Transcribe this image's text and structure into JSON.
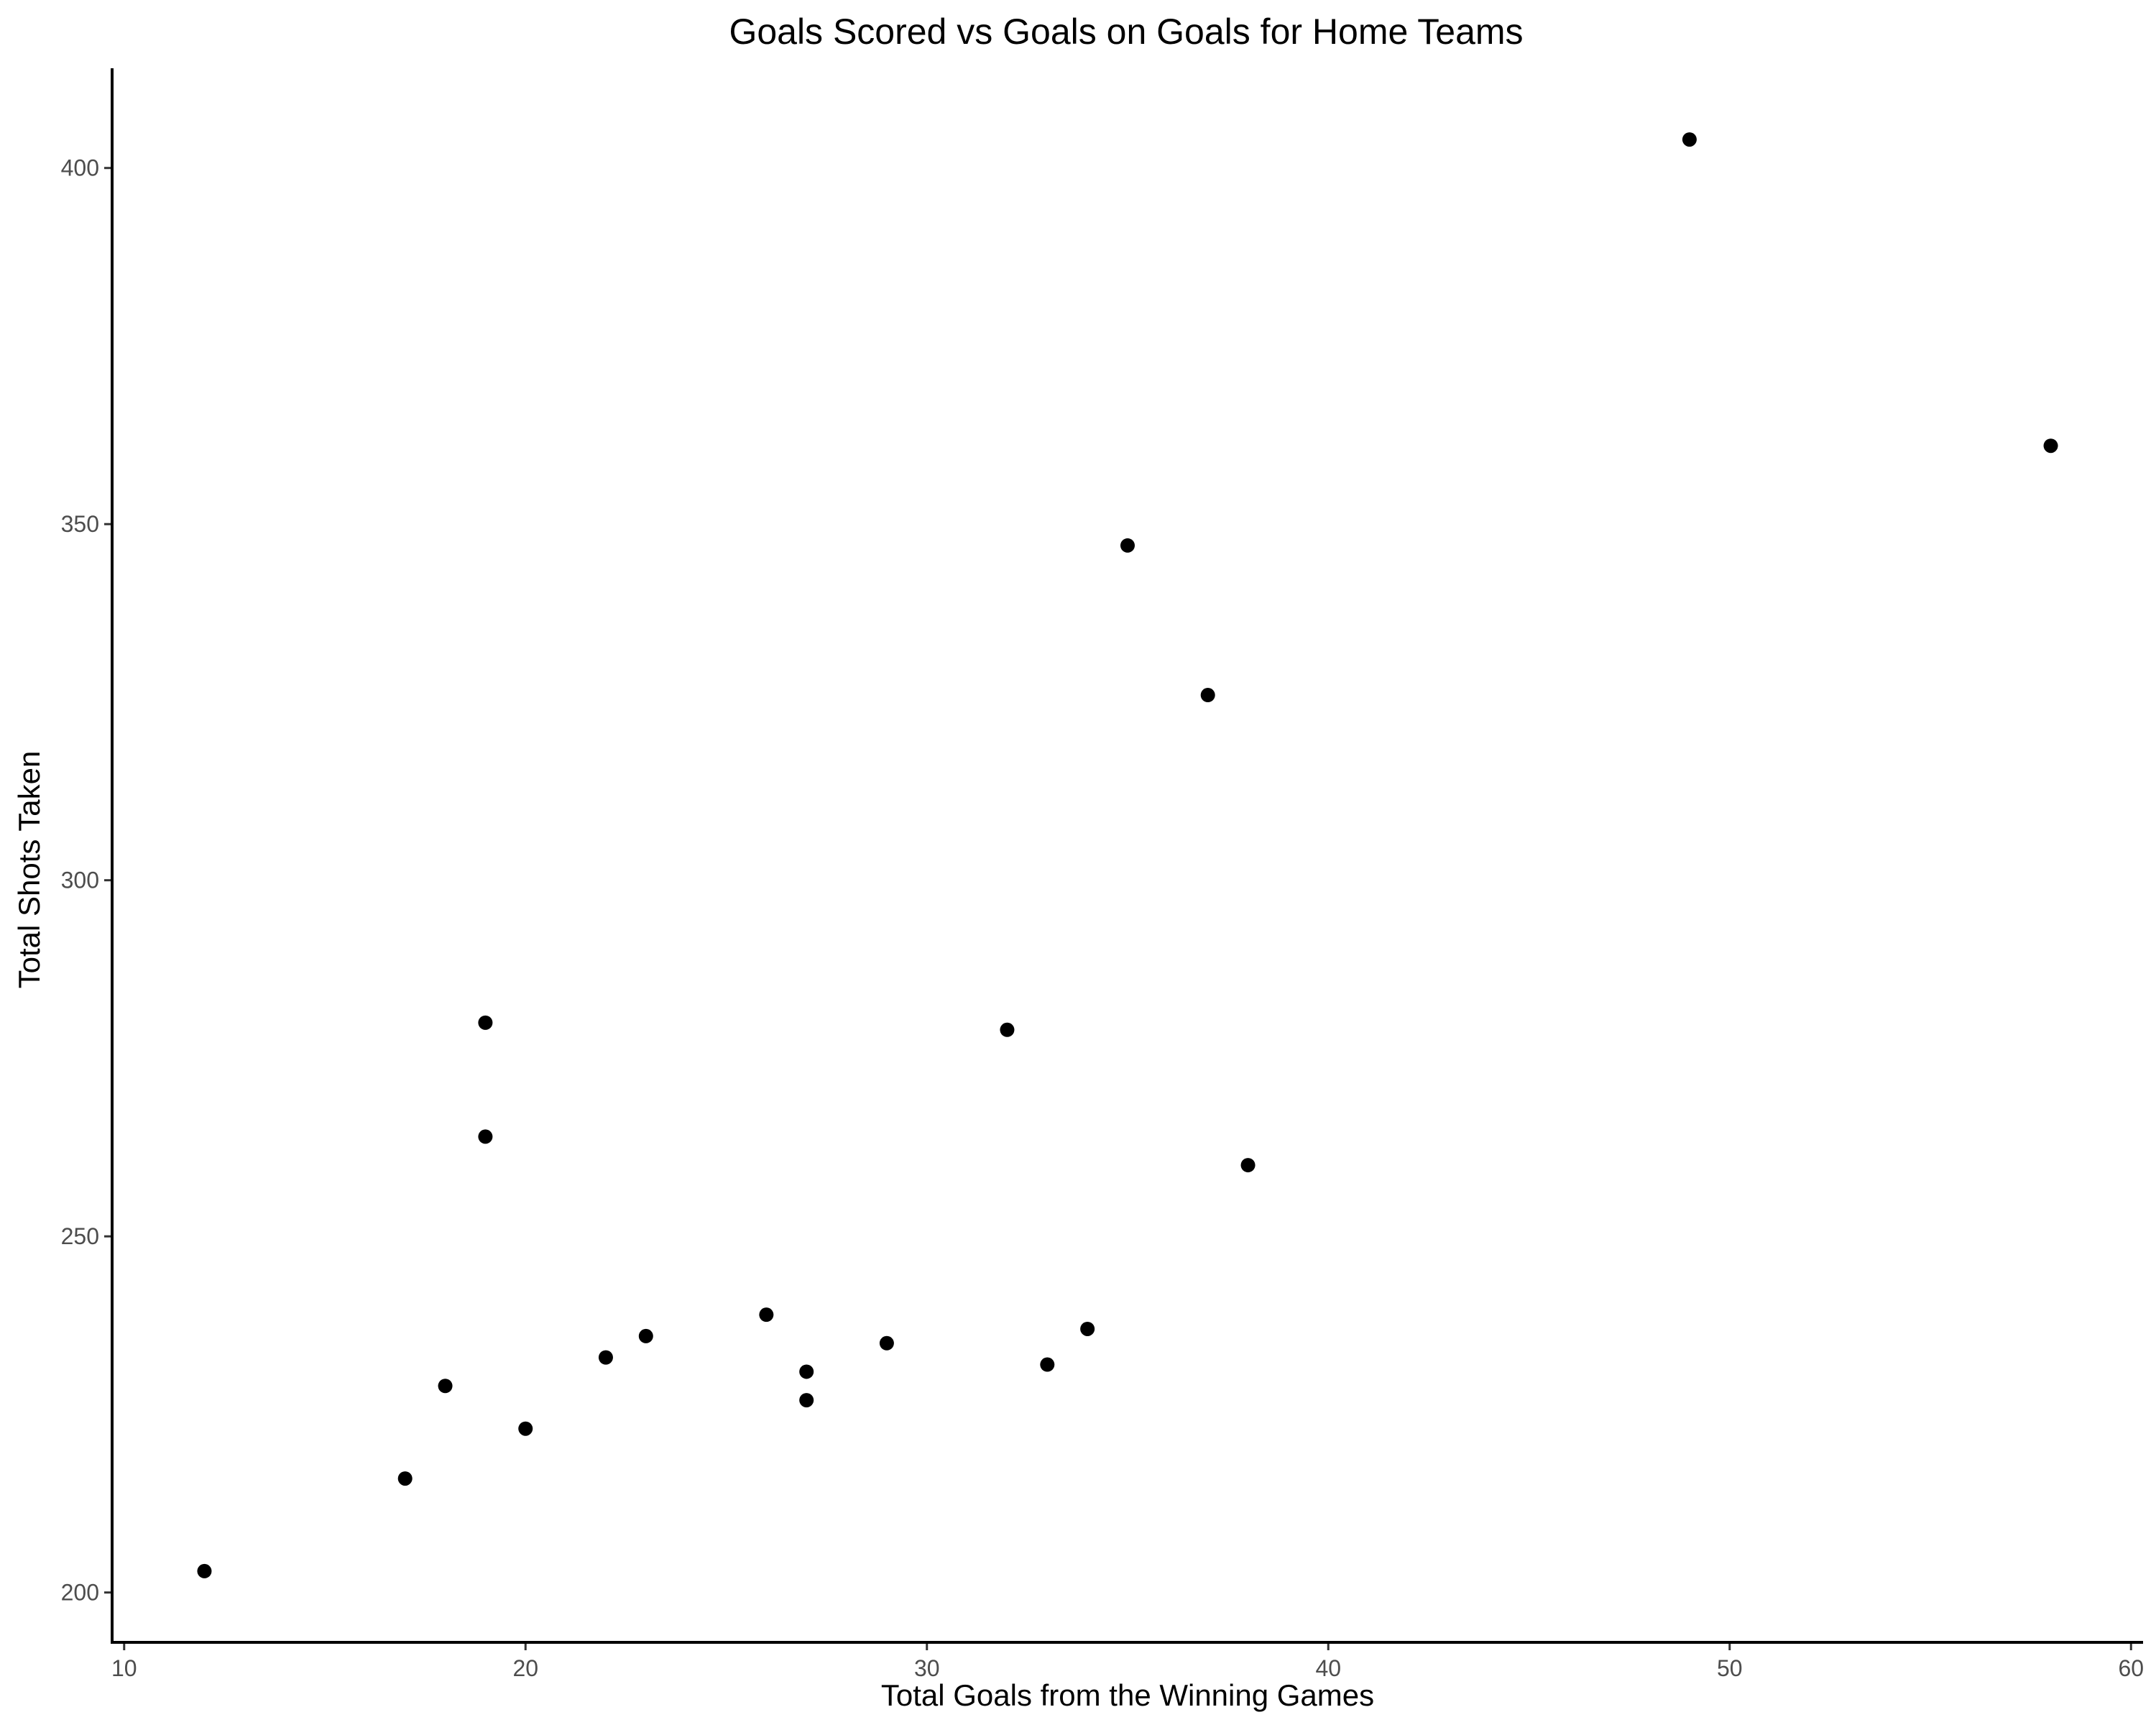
{
  "chart_data": {
    "type": "scatter",
    "title": "Goals Scored vs Goals on Goals for Home Teams",
    "xlabel": "Total Goals from the Winning Games",
    "ylabel": "Total Shots Taken",
    "xlim": [
      9.7,
      60.3
    ],
    "ylim": [
      193,
      414
    ],
    "x_ticks": [
      10,
      20,
      30,
      40,
      50,
      60
    ],
    "y_ticks": [
      200,
      250,
      300,
      350,
      400
    ],
    "grid": false,
    "point_color": "#000000",
    "series": [
      {
        "points": [
          {
            "x": 12,
            "y": 203
          },
          {
            "x": 17,
            "y": 216
          },
          {
            "x": 18,
            "y": 229
          },
          {
            "x": 19,
            "y": 264
          },
          {
            "x": 19,
            "y": 280
          },
          {
            "x": 20,
            "y": 223
          },
          {
            "x": 22,
            "y": 233
          },
          {
            "x": 23,
            "y": 236
          },
          {
            "x": 26,
            "y": 239
          },
          {
            "x": 27,
            "y": 227
          },
          {
            "x": 27,
            "y": 231
          },
          {
            "x": 29,
            "y": 235
          },
          {
            "x": 32,
            "y": 279
          },
          {
            "x": 33,
            "y": 232
          },
          {
            "x": 34,
            "y": 237
          },
          {
            "x": 35,
            "y": 347
          },
          {
            "x": 37,
            "y": 326
          },
          {
            "x": 38,
            "y": 260
          },
          {
            "x": 49,
            "y": 404
          },
          {
            "x": 58,
            "y": 361
          }
        ]
      }
    ]
  }
}
